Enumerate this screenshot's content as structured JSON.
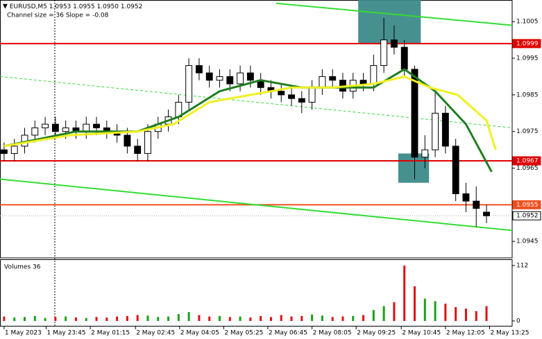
{
  "chart_data": {
    "type": "candlestick",
    "symbol": "EURUSD,M5",
    "quote": "1.0953 1.0955 1.0950 1.0952",
    "indicator": "Channel size = 36 Slope = -0.08",
    "xlim": [
      -0.4,
      49.5
    ],
    "ylim": [
      1.09405,
      1.10109
    ],
    "yticks": [
      1.1005,
      1.0995,
      1.0985,
      1.0975,
      1.0965,
      1.0945
    ],
    "xticks": [
      {
        "value": 0,
        "label": "1 May 2023"
      },
      {
        "value": 4.1,
        "label": "1 May 23:45"
      },
      {
        "value": 8.4,
        "label": "2 May 01:15"
      },
      {
        "value": 12.8,
        "label": "2 May 02:45"
      },
      {
        "value": 17.1,
        "label": "2 May 04:05"
      },
      {
        "value": 21.4,
        "label": "2 May 05:25"
      },
      {
        "value": 25.7,
        "label": "2 May 06:45"
      },
      {
        "value": 30.0,
        "label": "2 May 08:05"
      },
      {
        "value": 34.3,
        "label": "2 May 09:25"
      },
      {
        "value": 38.7,
        "label": "2 May 10:45"
      },
      {
        "value": 43.0,
        "label": "2 May 12:05"
      },
      {
        "value": 47.3,
        "label": "2 May 13:25"
      }
    ],
    "open": [
      1.097,
      1.0969,
      1.0971,
      1.0974,
      1.0976,
      1.0977,
      1.0975,
      1.0976,
      1.0975,
      1.0977,
      1.0976,
      1.0975,
      1.0974,
      1.0971,
      1.0969,
      1.0975,
      1.0977,
      1.0979,
      1.0983,
      1.0993,
      1.0991,
      1.0989,
      1.099,
      1.0988,
      1.0991,
      1.0989,
      1.0987,
      1.0986,
      1.0985,
      1.0984,
      1.0983,
      1.0987,
      1.099,
      1.0989,
      1.0986,
      1.0989,
      1.0988,
      1.0993,
      1.1,
      1.0998,
      1.0992,
      1.0968,
      1.097,
      1.098,
      1.0971,
      1.0958,
      1.0956,
      1.0953
    ],
    "high": [
      1.0972,
      1.0973,
      1.0976,
      1.0978,
      1.0979,
      1.0979,
      1.0978,
      1.0978,
      1.0979,
      1.0979,
      1.0978,
      1.0977,
      1.0976,
      1.0973,
      1.0977,
      1.0979,
      1.0981,
      1.0985,
      1.0995,
      1.0995,
      1.0993,
      1.0992,
      1.0992,
      1.0993,
      1.0993,
      1.0991,
      1.0989,
      1.0988,
      1.0987,
      1.0986,
      1.0989,
      1.0992,
      1.0992,
      1.0991,
      1.0991,
      1.0991,
      1.0996,
      1.1006,
      1.1004,
      1.1,
      1.0993,
      1.0974,
      1.0986,
      1.0982,
      1.0973,
      1.0961,
      1.096,
      1.0955
    ],
    "low": [
      1.0967,
      1.0967,
      1.0969,
      1.0972,
      1.0974,
      1.0973,
      1.0973,
      1.0973,
      1.0973,
      1.0974,
      1.0973,
      1.0972,
      1.0969,
      1.0967,
      1.0967,
      1.0973,
      1.0975,
      1.0977,
      1.0981,
      1.0989,
      1.0987,
      1.0987,
      1.0986,
      1.0986,
      1.0987,
      1.0985,
      1.0984,
      1.0983,
      1.0982,
      1.098,
      1.0981,
      1.0985,
      1.0987,
      1.0984,
      1.0984,
      1.0986,
      1.0986,
      1.0991,
      1.0996,
      1.099,
      1.0962,
      1.0965,
      1.0968,
      1.0969,
      1.0956,
      1.0953,
      1.0949,
      1.095
    ],
    "close": [
      1.0969,
      1.0971,
      1.0974,
      1.0976,
      1.0977,
      1.0975,
      1.0976,
      1.0975,
      1.0977,
      1.0976,
      1.0975,
      1.0974,
      1.0971,
      1.0969,
      1.0975,
      1.0977,
      1.0979,
      1.0983,
      1.0993,
      1.0991,
      1.0989,
      1.099,
      1.0988,
      1.0991,
      1.0989,
      1.0987,
      1.0986,
      1.0985,
      1.0984,
      1.0983,
      1.0987,
      1.099,
      1.0989,
      1.0986,
      1.0989,
      1.0988,
      1.0993,
      1.1,
      1.0998,
      1.0992,
      1.0968,
      1.097,
      1.098,
      1.0971,
      1.0958,
      1.0956,
      1.0954,
      1.0952
    ],
    "lines": [
      {
        "color": "#1e7d1e",
        "width": 3,
        "x": [
          0,
          7,
          13,
          17,
          21,
          25,
          29,
          32,
          36,
          39,
          42,
          45,
          47.5
        ],
        "values": [
          1.0971,
          1.0975,
          1.0975,
          1.0979,
          1.0986,
          1.0989,
          1.0987,
          1.0987,
          1.0987,
          1.0992,
          1.0986,
          1.0977,
          1.0964
        ]
      },
      {
        "color": "#f0f020",
        "width": 3,
        "x": [
          0,
          6.4,
          13,
          16.5,
          20,
          24,
          28,
          32,
          36,
          39,
          41.5,
          44.2,
          47,
          47.9
        ],
        "values": [
          1.0971,
          1.0974,
          1.0975,
          1.0977,
          1.0983,
          1.0985,
          1.0987,
          1.0987,
          1.0988,
          1.099,
          1.0987,
          1.0985,
          1.0978,
          1.097
        ]
      },
      {
        "color": "#33dd33",
        "width": 2,
        "x": [
          26.5,
          49.5
        ],
        "values": [
          1.101,
          1.1004
        ]
      },
      {
        "color": "#33dd33",
        "width": 2,
        "x": [
          -0.4,
          49.5
        ],
        "values": [
          1.0962,
          1.0948
        ]
      },
      {
        "color": "#33dd33",
        "width": 1,
        "dashed": true,
        "x": [
          -0.4,
          49.5
        ],
        "values": [
          1.099,
          1.0976
        ]
      }
    ],
    "zones": [
      {
        "color": "#3d8a8a",
        "x": [
          34.5,
          40.6
        ],
        "y": [
          1.0999,
          1.1011
        ]
      },
      {
        "color": "#3d8a8a",
        "x": [
          38.4,
          41.4
        ],
        "y": [
          1.0961,
          1.0969
        ]
      }
    ],
    "levels": [
      {
        "value": 1.0999,
        "color": "#e00000"
      },
      {
        "value": 1.0967,
        "color": "#e00000"
      },
      {
        "value": 1.0955,
        "color": "#f05020"
      },
      {
        "value": 1.0952,
        "color": "#ffffff"
      }
    ],
    "volume_title": "Volumes 36",
    "volume_ylim": [
      0,
      112
    ],
    "volume_yticks": [
      112,
      0
    ],
    "volumes": [
      9,
      7,
      8,
      10,
      6,
      8,
      9,
      7,
      6,
      8,
      7,
      9,
      10,
      12,
      11,
      8,
      9,
      14,
      18,
      12,
      9,
      10,
      8,
      9,
      7,
      10,
      8,
      12,
      9,
      10,
      13,
      11,
      8,
      9,
      10,
      12,
      22,
      30,
      38,
      112,
      70,
      45,
      40,
      35,
      28,
      25,
      20,
      30
    ]
  }
}
